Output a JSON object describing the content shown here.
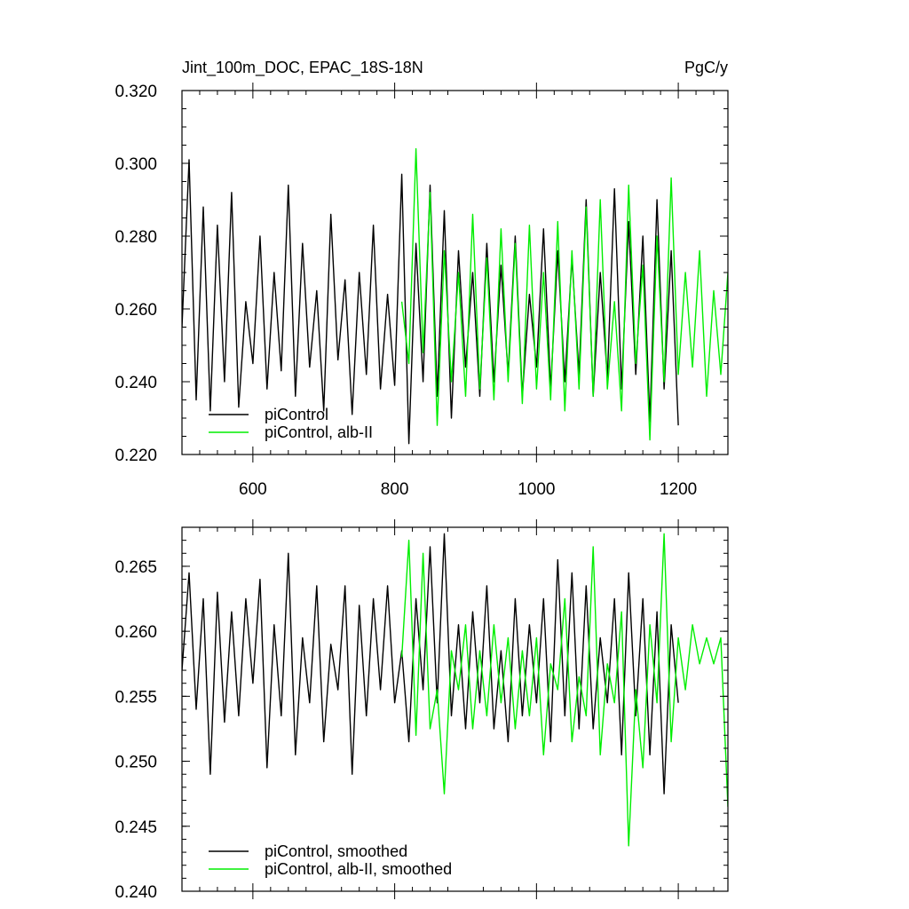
{
  "chart_data": [
    {
      "type": "line",
      "title": "Jint_100m_DOC, EPAC_18S-18N",
      "units": "PgC/y",
      "xlim": [
        500,
        1270
      ],
      "ylim": [
        0.22,
        0.32
      ],
      "xticks": [
        600,
        800,
        1000,
        1200
      ],
      "xtick_labels": [
        "600",
        "800",
        "1000",
        "1200"
      ],
      "yticks": [
        0.22,
        0.24,
        0.26,
        0.28,
        0.3,
        0.32
      ],
      "ytick_labels": [
        "0.220",
        "0.240",
        "0.260",
        "0.280",
        "0.300",
        "0.320"
      ],
      "legend_position": "bottom-left",
      "series": [
        {
          "name": "piControl",
          "color": "#000000",
          "x": [
            500,
            510,
            520,
            530,
            540,
            550,
            560,
            570,
            580,
            590,
            600,
            610,
            620,
            630,
            640,
            650,
            660,
            670,
            680,
            690,
            700,
            710,
            720,
            730,
            740,
            750,
            760,
            770,
            780,
            790,
            800,
            810,
            820,
            830,
            840,
            850,
            860,
            870,
            880,
            890,
            900,
            910,
            920,
            930,
            940,
            950,
            960,
            970,
            980,
            990,
            1000,
            1010,
            1020,
            1030,
            1040,
            1050,
            1060,
            1070,
            1080,
            1090,
            1100,
            1110,
            1120,
            1130,
            1140,
            1150,
            1160,
            1170,
            1180,
            1190,
            1200
          ],
          "y": [
            0.255,
            0.301,
            0.235,
            0.288,
            0.232,
            0.283,
            0.24,
            0.292,
            0.233,
            0.262,
            0.245,
            0.28,
            0.238,
            0.27,
            0.243,
            0.294,
            0.236,
            0.278,
            0.244,
            0.265,
            0.232,
            0.286,
            0.246,
            0.268,
            0.231,
            0.27,
            0.242,
            0.283,
            0.238,
            0.264,
            0.239,
            0.297,
            0.223,
            0.278,
            0.24,
            0.294,
            0.236,
            0.287,
            0.23,
            0.276,
            0.244,
            0.27,
            0.236,
            0.278,
            0.24,
            0.272,
            0.242,
            0.28,
            0.236,
            0.264,
            0.244,
            0.282,
            0.238,
            0.276,
            0.24,
            0.274,
            0.242,
            0.29,
            0.236,
            0.27,
            0.241,
            0.293,
            0.238,
            0.284,
            0.242,
            0.28,
            0.229,
            0.29,
            0.238,
            0.276,
            0.228
          ]
        },
        {
          "name": "piControl, alb-II",
          "color": "#00ee00",
          "x": [
            810,
            820,
            830,
            840,
            850,
            860,
            870,
            880,
            890,
            900,
            910,
            920,
            930,
            940,
            950,
            960,
            970,
            980,
            990,
            1000,
            1010,
            1020,
            1030,
            1040,
            1050,
            1060,
            1070,
            1080,
            1090,
            1100,
            1110,
            1120,
            1130,
            1140,
            1150,
            1160,
            1170,
            1180,
            1190,
            1200,
            1210,
            1220,
            1230,
            1240,
            1250,
            1260,
            1270
          ],
          "y": [
            0.262,
            0.245,
            0.304,
            0.248,
            0.292,
            0.228,
            0.276,
            0.24,
            0.27,
            0.236,
            0.286,
            0.238,
            0.274,
            0.235,
            0.282,
            0.24,
            0.278,
            0.234,
            0.283,
            0.238,
            0.27,
            0.235,
            0.284,
            0.232,
            0.276,
            0.238,
            0.288,
            0.236,
            0.29,
            0.238,
            0.262,
            0.232,
            0.294,
            0.245,
            0.272,
            0.224,
            0.28,
            0.24,
            0.296,
            0.242,
            0.27,
            0.244,
            0.276,
            0.236,
            0.265,
            0.242,
            0.27
          ]
        }
      ]
    },
    {
      "type": "line",
      "xlim": [
        500,
        1270
      ],
      "ylim": [
        0.24,
        0.268
      ],
      "xticks": [
        600,
        800,
        1000,
        1200
      ],
      "yticks": [
        0.24,
        0.245,
        0.25,
        0.255,
        0.26,
        0.265
      ],
      "ytick_labels": [
        "0.240",
        "0.245",
        "0.250",
        "0.255",
        "0.260",
        "0.265"
      ],
      "legend_position": "bottom-left",
      "series": [
        {
          "name": "piControl, smoothed",
          "color": "#000000",
          "x": [
            500,
            510,
            520,
            530,
            540,
            550,
            560,
            570,
            580,
            590,
            600,
            610,
            620,
            630,
            640,
            650,
            660,
            670,
            680,
            690,
            700,
            710,
            720,
            730,
            740,
            750,
            760,
            770,
            780,
            790,
            800,
            810,
            820,
            830,
            840,
            850,
            860,
            870,
            880,
            890,
            900,
            910,
            920,
            930,
            940,
            950,
            960,
            970,
            980,
            990,
            1000,
            1010,
            1020,
            1030,
            1040,
            1050,
            1060,
            1070,
            1080,
            1090,
            1100,
            1110,
            1120,
            1130,
            1140,
            1150,
            1160,
            1170,
            1180,
            1190,
            1200
          ],
          "y": [
            0.257,
            0.2645,
            0.254,
            0.2625,
            0.249,
            0.263,
            0.253,
            0.2615,
            0.2535,
            0.2625,
            0.256,
            0.264,
            0.2495,
            0.2605,
            0.2535,
            0.266,
            0.2505,
            0.2595,
            0.2545,
            0.2635,
            0.2515,
            0.259,
            0.2555,
            0.2635,
            0.249,
            0.262,
            0.2535,
            0.2625,
            0.2555,
            0.2635,
            0.2545,
            0.2585,
            0.2515,
            0.2625,
            0.2555,
            0.2665,
            0.2545,
            0.2675,
            0.2535,
            0.2605,
            0.2525,
            0.2615,
            0.2545,
            0.2635,
            0.2525,
            0.2585,
            0.2515,
            0.2625,
            0.2535,
            0.2605,
            0.2545,
            0.2625,
            0.2515,
            0.2655,
            0.2535,
            0.2645,
            0.2525,
            0.2635,
            0.2525,
            0.2595,
            0.2545,
            0.2625,
            0.2505,
            0.2645,
            0.2535,
            0.2625,
            0.2505,
            0.2615,
            0.2475,
            0.2605,
            0.2545
          ]
        },
        {
          "name": "piControl, alb-II, smoothed",
          "color": "#00ee00",
          "x": [
            810,
            820,
            830,
            840,
            850,
            860,
            870,
            880,
            890,
            900,
            910,
            920,
            930,
            940,
            950,
            960,
            970,
            980,
            990,
            1000,
            1010,
            1020,
            1030,
            1040,
            1050,
            1060,
            1070,
            1080,
            1090,
            1100,
            1110,
            1120,
            1130,
            1140,
            1150,
            1160,
            1170,
            1180,
            1190,
            1200,
            1210,
            1220,
            1230,
            1240,
            1250,
            1260,
            1270
          ],
          "y": [
            0.258,
            0.267,
            0.252,
            0.266,
            0.2525,
            0.2555,
            0.2475,
            0.2585,
            0.2555,
            0.2605,
            0.2525,
            0.2585,
            0.2535,
            0.2605,
            0.2545,
            0.2595,
            0.2525,
            0.2585,
            0.2535,
            0.2595,
            0.2505,
            0.2575,
            0.2555,
            0.2625,
            0.2515,
            0.2565,
            0.2535,
            0.2665,
            0.2505,
            0.2575,
            0.2545,
            0.2615,
            0.2435,
            0.2555,
            0.2495,
            0.2605,
            0.2545,
            0.2675,
            0.2515,
            0.2595,
            0.2555,
            0.2605,
            0.2575,
            0.2595,
            0.2575,
            0.2595,
            0.2465
          ]
        }
      ]
    }
  ]
}
